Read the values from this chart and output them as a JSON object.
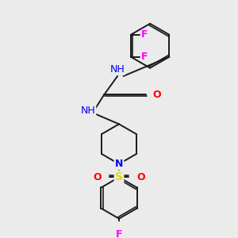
{
  "background_color": "#ebebeb",
  "bond_color": "#1a1a1a",
  "atom_colors": {
    "N": "#0000ee",
    "O": "#ff0000",
    "F": "#ff00ff",
    "S": "#dddd00",
    "H": "#008080",
    "C": "#1a1a1a"
  },
  "figsize": [
    3.0,
    3.0
  ],
  "dpi": 100
}
